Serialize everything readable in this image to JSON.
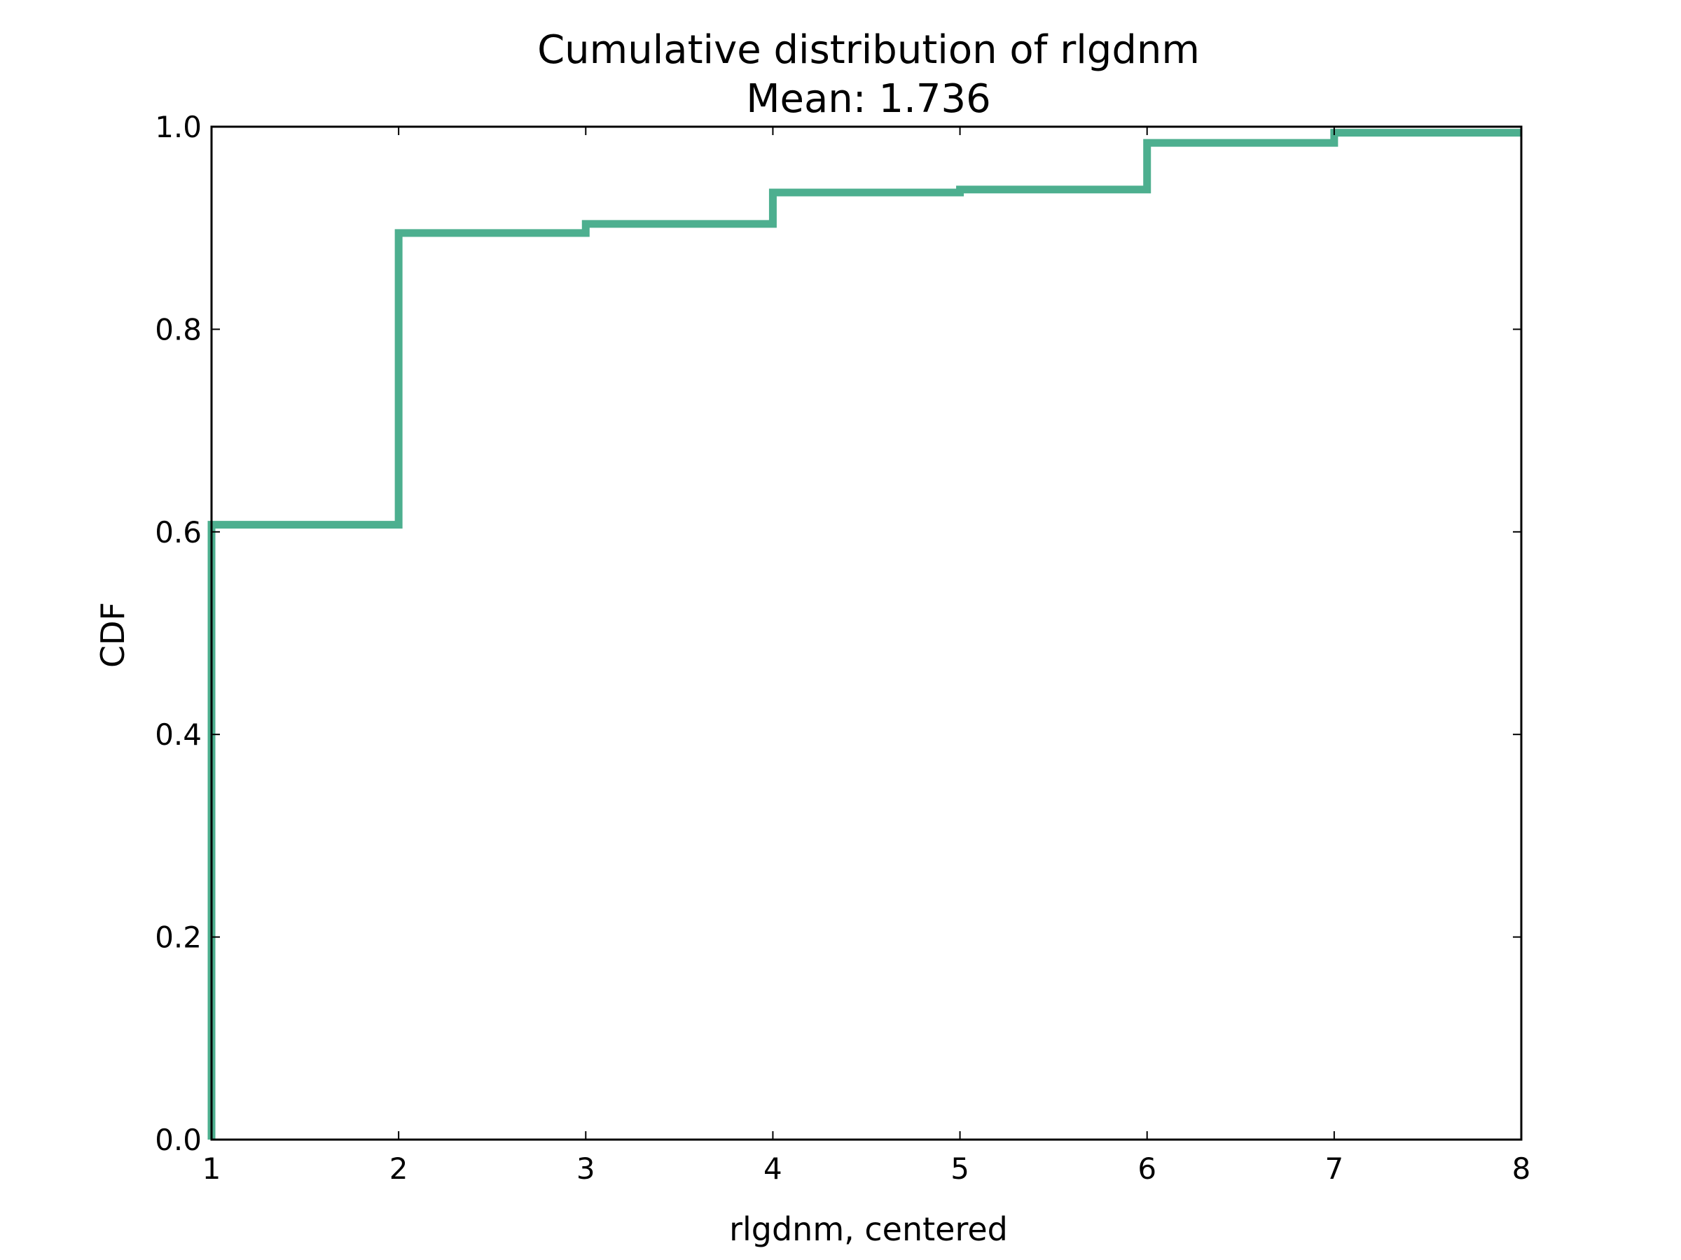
{
  "chart_data": {
    "type": "line",
    "step": "post",
    "title": "Cumulative distribution of rlgdnm",
    "subtitle": "Mean: 1.736",
    "xlabel": "rlgdnm, centered",
    "ylabel": "CDF",
    "xlim": [
      1,
      8
    ],
    "ylim": [
      0.0,
      1.0
    ],
    "xticks": [
      "1",
      "2",
      "3",
      "4",
      "5",
      "6",
      "7",
      "8"
    ],
    "yticks": [
      "0.0",
      "0.2",
      "0.4",
      "0.6",
      "0.8",
      "1.0"
    ],
    "grid": false,
    "legend": false,
    "color": "#4daf8f",
    "series": [
      {
        "x": [
          1,
          1,
          2,
          3,
          4,
          5,
          6,
          7,
          8
        ],
        "y": [
          0.0,
          0.607,
          0.895,
          0.904,
          0.935,
          0.938,
          0.984,
          0.994,
          0.994
        ]
      }
    ]
  }
}
